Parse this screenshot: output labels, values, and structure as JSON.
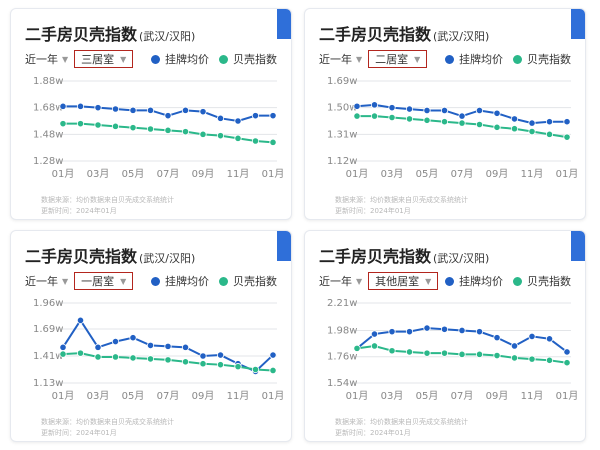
{
  "colors": {
    "listing": "#2160c4",
    "beike": "#2bb88a",
    "grid": "#e3e5e8",
    "axis_text": "#888888"
  },
  "panel_common": {
    "title": "二手房贝壳指数",
    "city": "(武汉/汉阳)",
    "period": "近一年",
    "legend": [
      "挂牌均价",
      "贝壳指数"
    ],
    "source_line1": "数据来源：均价数据来自贝壳成交系统统计",
    "source_line2": "更新时间：2024年01月"
  },
  "chart_data": [
    {
      "type": "line",
      "room": "三居室",
      "categories": [
        "01月",
        "02月",
        "03月",
        "04月",
        "05月",
        "06月",
        "07月",
        "08月",
        "09月",
        "10月",
        "11月",
        "12月",
        "01月"
      ],
      "x_tick_labels": [
        "01月",
        "03月",
        "05月",
        "07月",
        "09月",
        "11月",
        "01月"
      ],
      "ylim": [
        1.28,
        1.88
      ],
      "y_tick_labels": [
        "1.28w",
        "1.48w",
        "1.68w",
        "1.88w"
      ],
      "y_ticks": [
        1.28,
        1.48,
        1.68,
        1.88
      ],
      "series": [
        {
          "name": "挂牌均价",
          "values": [
            1.69,
            1.69,
            1.68,
            1.67,
            1.66,
            1.66,
            1.62,
            1.66,
            1.65,
            1.6,
            1.58,
            1.62,
            1.62
          ]
        },
        {
          "name": "贝壳指数",
          "values": [
            1.56,
            1.56,
            1.55,
            1.54,
            1.53,
            1.52,
            1.51,
            1.5,
            1.48,
            1.47,
            1.45,
            1.43,
            1.42
          ]
        }
      ]
    },
    {
      "type": "line",
      "room": "二居室",
      "categories": [
        "01月",
        "02月",
        "03月",
        "04月",
        "05月",
        "06月",
        "07月",
        "08月",
        "09月",
        "10月",
        "11月",
        "12月",
        "01月"
      ],
      "x_tick_labels": [
        "01月",
        "03月",
        "05月",
        "07月",
        "09月",
        "11月",
        "01月"
      ],
      "ylim": [
        1.12,
        1.69
      ],
      "y_tick_labels": [
        "1.12w",
        "1.31w",
        "1.50w",
        "1.69w"
      ],
      "y_ticks": [
        1.12,
        1.31,
        1.5,
        1.69
      ],
      "series": [
        {
          "name": "挂牌均价",
          "values": [
            1.51,
            1.52,
            1.5,
            1.49,
            1.48,
            1.48,
            1.44,
            1.48,
            1.46,
            1.42,
            1.39,
            1.4,
            1.4
          ]
        },
        {
          "name": "贝壳指数",
          "values": [
            1.44,
            1.44,
            1.43,
            1.42,
            1.41,
            1.4,
            1.39,
            1.38,
            1.36,
            1.35,
            1.33,
            1.31,
            1.29
          ]
        }
      ]
    },
    {
      "type": "line",
      "room": "一居室",
      "categories": [
        "01月",
        "02月",
        "03月",
        "04月",
        "05月",
        "06月",
        "07月",
        "08月",
        "09月",
        "10月",
        "11月",
        "12月",
        "01月"
      ],
      "x_tick_labels": [
        "01月",
        "03月",
        "05月",
        "07月",
        "09月",
        "11月",
        "01月"
      ],
      "ylim": [
        1.13,
        1.96
      ],
      "y_tick_labels": [
        "1.13w",
        "1.41w",
        "1.69w",
        "1.96w"
      ],
      "y_ticks": [
        1.13,
        1.41,
        1.69,
        1.96
      ],
      "series": [
        {
          "name": "挂牌均价",
          "values": [
            1.5,
            1.78,
            1.5,
            1.56,
            1.6,
            1.52,
            1.51,
            1.5,
            1.41,
            1.42,
            1.33,
            1.25,
            1.42
          ]
        },
        {
          "name": "贝壳指数",
          "values": [
            1.43,
            1.44,
            1.4,
            1.4,
            1.39,
            1.38,
            1.37,
            1.35,
            1.33,
            1.32,
            1.3,
            1.27,
            1.26
          ]
        }
      ]
    },
    {
      "type": "line",
      "room": "其他居室",
      "categories": [
        "01月",
        "02月",
        "03月",
        "04月",
        "05月",
        "06月",
        "07月",
        "08月",
        "09月",
        "10月",
        "11月",
        "12月",
        "01月"
      ],
      "x_tick_labels": [
        "01月",
        "03月",
        "05月",
        "07月",
        "09月",
        "11月",
        "01月"
      ],
      "ylim": [
        1.54,
        2.21
      ],
      "y_tick_labels": [
        "1.54w",
        "1.76w",
        "1.98w",
        "2.21w"
      ],
      "y_ticks": [
        1.54,
        1.76,
        1.98,
        2.21
      ],
      "series": [
        {
          "name": "挂牌均价",
          "values": [
            1.83,
            1.95,
            1.97,
            1.97,
            2.0,
            1.99,
            1.98,
            1.97,
            1.92,
            1.85,
            1.93,
            1.91,
            1.8
          ]
        },
        {
          "name": "贝壳指数",
          "values": [
            1.83,
            1.85,
            1.81,
            1.8,
            1.79,
            1.79,
            1.78,
            1.78,
            1.77,
            1.75,
            1.74,
            1.73,
            1.71
          ]
        }
      ]
    }
  ]
}
